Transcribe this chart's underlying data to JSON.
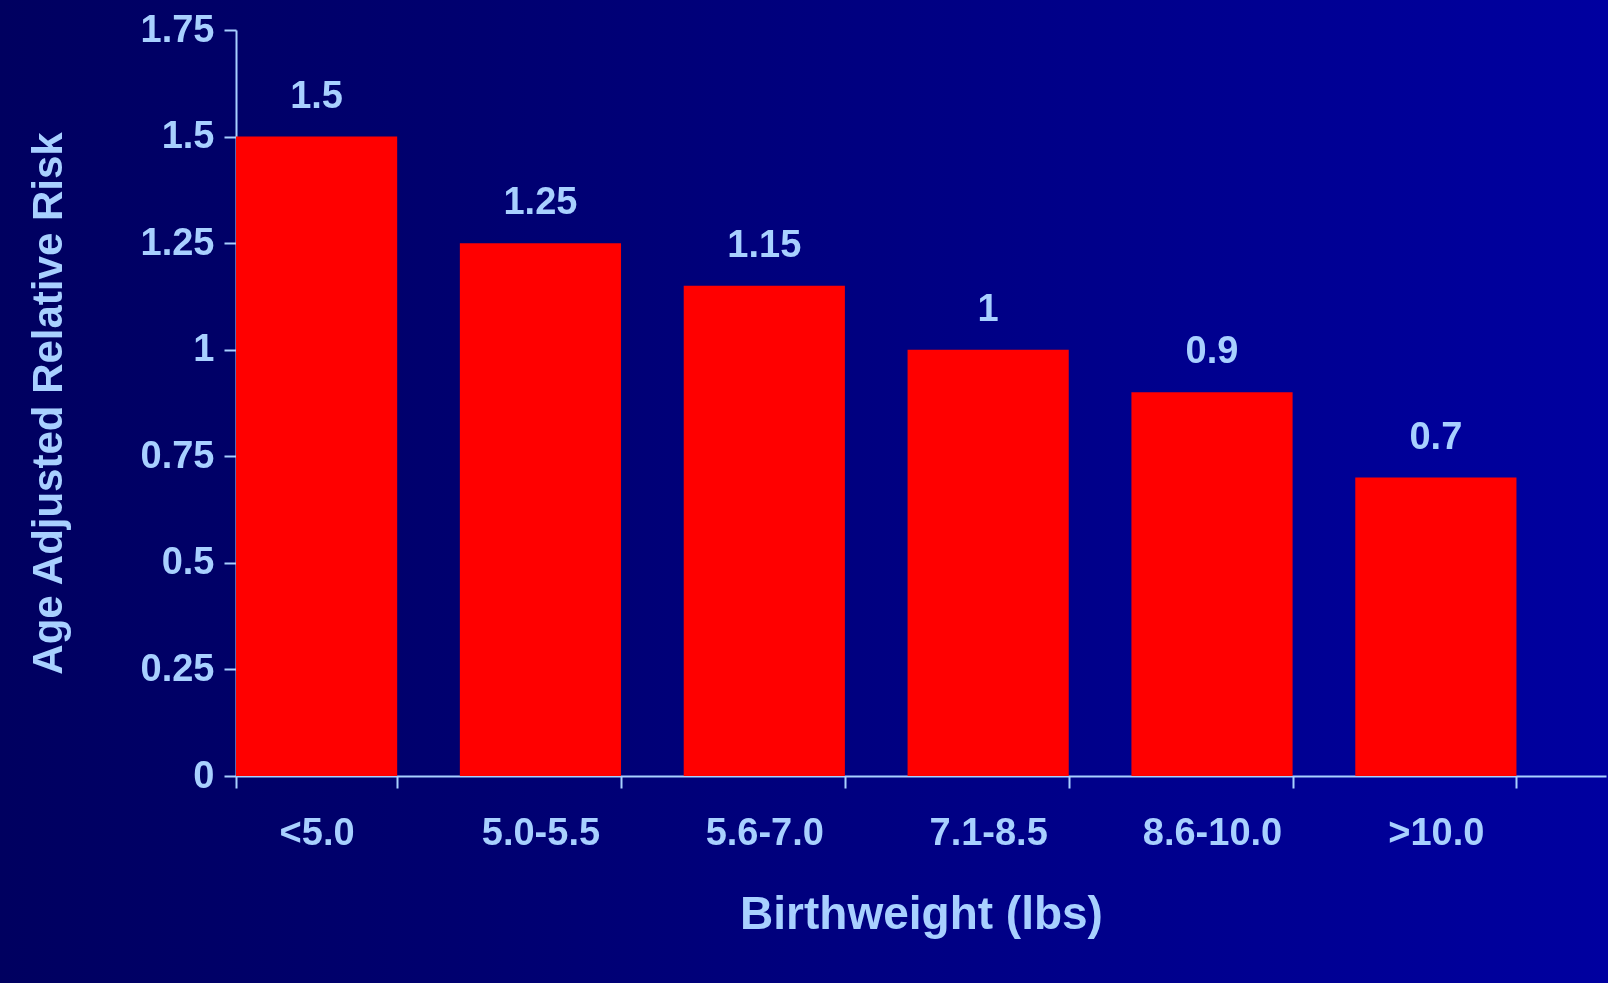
{
  "chart_data": {
    "type": "bar",
    "xlabel": "Birthweight (lbs)",
    "ylabel": "Age Adjusted Relative Risk",
    "categories": [
      "<5.0",
      "5.0-5.5",
      "5.6-7.0",
      "7.1-8.5",
      "8.6-10.0",
      ">10.0"
    ],
    "values": [
      1.5,
      1.25,
      1.15,
      1,
      0.9,
      0.7
    ],
    "color": "#ff0000",
    "ylim": [
      0,
      1.75
    ],
    "yticks": [
      0,
      0.25,
      0.5,
      0.75,
      1,
      1.25,
      1.5,
      1.75
    ],
    "data_labels": true,
    "grid": false
  }
}
